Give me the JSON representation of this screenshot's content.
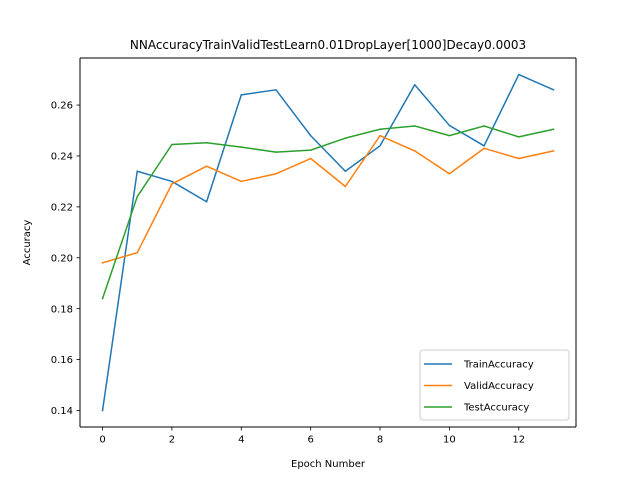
{
  "chart_data": {
    "type": "line",
    "title": "NNAccuracyTrainValidTestLearn0.01DropLayer[1000]Decay0.0003",
    "xlabel": "Epoch Number",
    "ylabel": "Accuracy",
    "xlim": [
      -0.65,
      13.65
    ],
    "ylim": [
      0.1335,
      0.2785
    ],
    "xticks": [
      0,
      2,
      4,
      6,
      8,
      10,
      12
    ],
    "yticks": [
      0.14,
      0.16,
      0.18,
      0.2,
      0.22,
      0.24,
      0.26
    ],
    "xtick_labels": [
      "0",
      "2",
      "4",
      "6",
      "8",
      "10",
      "12"
    ],
    "ytick_labels": [
      "0.14",
      "0.16",
      "0.18",
      "0.20",
      "0.22",
      "0.24",
      "0.26"
    ],
    "grid": false,
    "legend_position": "lower-right",
    "x": [
      0,
      1,
      2,
      3,
      4,
      5,
      6,
      7,
      8,
      9,
      10,
      11,
      12,
      13
    ],
    "series": [
      {
        "name": "TrainAccuracy",
        "color": "#1f77b4",
        "values": [
          0.14,
          0.234,
          0.23,
          0.222,
          0.264,
          0.266,
          0.248,
          0.234,
          0.244,
          0.268,
          0.252,
          0.244,
          0.272,
          0.266
        ]
      },
      {
        "name": "ValidAccuracy",
        "color": "#ff7f0e",
        "values": [
          0.198,
          0.202,
          0.229,
          0.236,
          0.23,
          0.233,
          0.239,
          0.228,
          0.248,
          0.242,
          0.233,
          0.243,
          0.239,
          0.242
        ]
      },
      {
        "name": "TestAccuracy",
        "color": "#2ca02c",
        "values": [
          0.184,
          0.224,
          0.2445,
          0.2452,
          0.2435,
          0.2415,
          0.2423,
          0.247,
          0.2505,
          0.2518,
          0.248,
          0.2518,
          0.2475,
          0.2505
        ]
      }
    ]
  }
}
